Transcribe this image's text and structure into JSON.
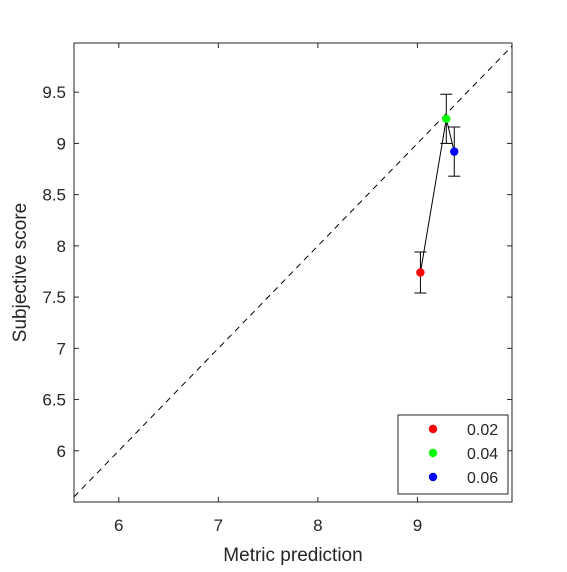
{
  "chart_data": {
    "type": "scatter",
    "xlabel": "Metric prediction",
    "ylabel": "Subjective score",
    "xlim": [
      5.55,
      9.95
    ],
    "ylim": [
      5.5,
      9.98
    ],
    "x_ticks": [
      6,
      7,
      8,
      9
    ],
    "y_ticks": [
      6,
      6.5,
      7,
      7.5,
      8,
      8.5,
      9,
      9.5
    ],
    "x_tick_labels": [
      "6",
      "7",
      "8",
      "9"
    ],
    "y_tick_labels": [
      "6",
      "6.5",
      "7",
      "7.5",
      "8",
      "8.5",
      "9",
      "9.5"
    ],
    "grid": false,
    "box": true,
    "reference_line": {
      "style": "dashed",
      "color": "#000000",
      "description": "identity y = x"
    },
    "connecting_line": {
      "color": "#000000"
    },
    "legend_position": "bottom-right",
    "series": [
      {
        "name": "0.02",
        "color": "#ff0000",
        "x": 9.03,
        "y": 7.74,
        "err_low": 7.54,
        "err_high": 7.94
      },
      {
        "name": "0.04",
        "color": "#00ff00",
        "x": 9.29,
        "y": 9.24,
        "err_low": 9.0,
        "err_high": 9.48
      },
      {
        "name": "0.06",
        "color": "#0000ff",
        "x": 9.37,
        "y": 8.92,
        "err_low": 8.68,
        "err_high": 9.16
      }
    ]
  }
}
